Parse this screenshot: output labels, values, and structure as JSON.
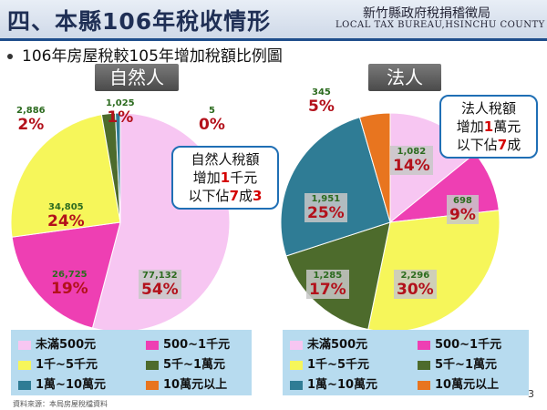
{
  "header": {
    "title": "四、本縣106年稅收情形",
    "org_cn": "新竹縣政府稅捐稽徵局",
    "org_en": "LOCAL TAX BUREAU,HSINCHU COUNTY"
  },
  "subtitle": "106年房屋稅較105年增加稅額比例圖",
  "callouts": {
    "natural": {
      "line1": "自然人稅額",
      "line2_a": "增加",
      "line2_b": "1",
      "line2_c": "千元",
      "line3_a": "以下佔",
      "line3_b": "7",
      "line3_c": "成",
      "line3_d": "3"
    },
    "legal": {
      "line1": "法人稅額",
      "line2_a": "增加",
      "line2_b": "1",
      "line2_c": "萬元",
      "line3_a": "以下佔",
      "line3_b": "7",
      "line3_c": "成"
    }
  },
  "legend": [
    {
      "label": "未滿500元",
      "color": "#f7c6f2"
    },
    {
      "label": "500~1千元",
      "color": "#ee3fb3"
    },
    {
      "label": "1千~5千元",
      "color": "#f6f65a"
    },
    {
      "label": "5千~1萬元",
      "color": "#4d6b2c"
    },
    {
      "label": "1萬~10萬元",
      "color": "#2f7c95"
    },
    {
      "label": "10萬元以上",
      "color": "#e8751f"
    }
  ],
  "chart_data": [
    {
      "type": "pie",
      "title": "自然人",
      "categories": [
        "未滿500元",
        "500~1千元",
        "1千~5千元",
        "5千~1萬元",
        "1萬~10萬元",
        "10萬元以上"
      ],
      "values": [
        77132,
        26725,
        34805,
        2886,
        1025,
        5
      ],
      "percent_labels": [
        "54%",
        "19%",
        "24%",
        "2%",
        "1%",
        "0%"
      ],
      "count_labels": [
        "77,132",
        "26,725",
        "34,805",
        "2,886",
        "1,025",
        "5"
      ]
    },
    {
      "type": "pie",
      "title": "法人",
      "categories": [
        "未滿500元",
        "500~1千元",
        "1千~5千元",
        "5千~1萬元",
        "1萬~10萬元",
        "10萬元以上"
      ],
      "values": [
        1082,
        698,
        2296,
        1285,
        1951,
        345
      ],
      "percent_labels": [
        "14%",
        "9%",
        "30%",
        "17%",
        "25%",
        "5%"
      ],
      "count_labels": [
        "1,082",
        "698",
        "2,296",
        "1,285",
        "1,951",
        "345"
      ]
    }
  ],
  "source": "資料來源：本局房屋稅檔資料",
  "page_number": "3"
}
